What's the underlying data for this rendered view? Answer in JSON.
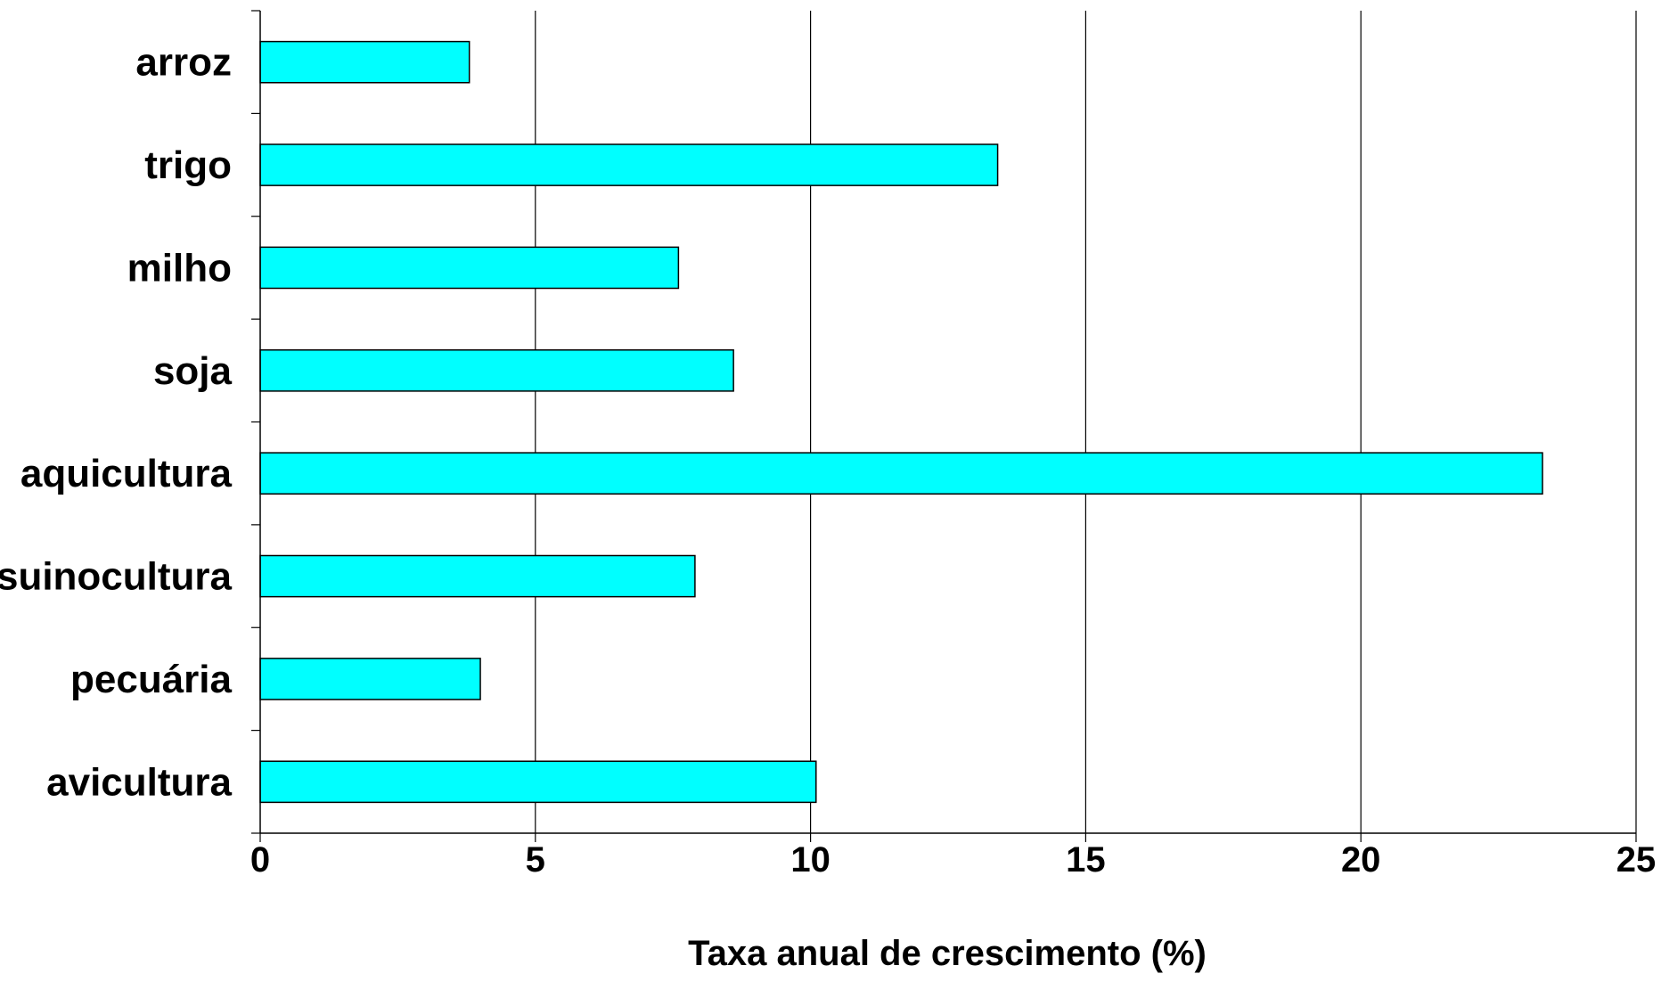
{
  "chart_data": {
    "type": "bar",
    "orientation": "horizontal",
    "categories": [
      "arroz",
      "trigo",
      "milho",
      "soja",
      "aquicultura",
      "suinocultura",
      "pecuária",
      "avicultura"
    ],
    "values": [
      3.8,
      13.4,
      7.6,
      8.6,
      23.3,
      7.9,
      4.0,
      10.1
    ],
    "title": "",
    "xlabel": "Taxa anual de crescimento (%)",
    "ylabel": "",
    "xlim": [
      0,
      25
    ],
    "xticks": [
      0,
      5,
      10,
      15,
      20,
      25
    ],
    "grid": "vertical",
    "legend": "none",
    "colors": {
      "bar_fill": "#00ffff",
      "bar_stroke": "#000000",
      "grid": "#000000",
      "axis": "#000000"
    }
  }
}
